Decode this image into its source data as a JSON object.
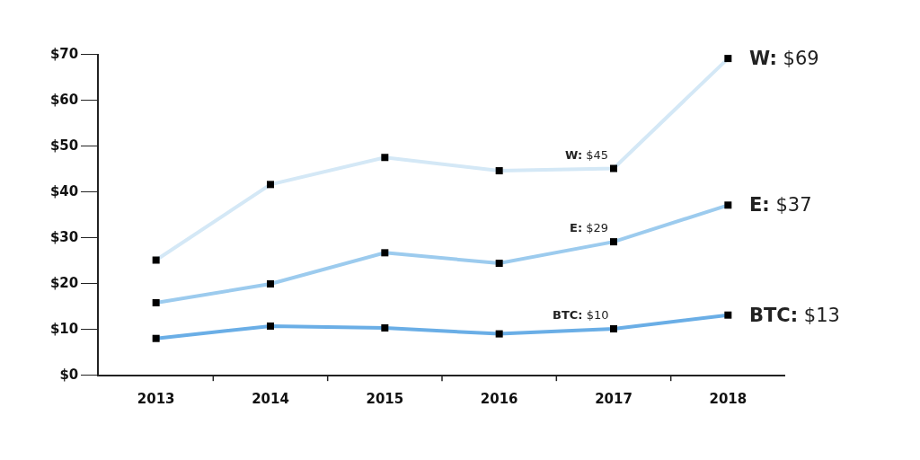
{
  "chart_data": {
    "type": "line",
    "categories": [
      "2013",
      "2014",
      "2015",
      "2016",
      "2017",
      "2018"
    ],
    "series": [
      {
        "color": "#d4e8f6",
        "values": [
          25,
          41.5,
          47.4,
          44.5,
          45,
          69
        ]
      },
      {
        "color": "#9ccbee",
        "values": [
          15.7,
          19.8,
          26.6,
          24.3,
          29,
          37
        ]
      },
      {
        "color": "#6aaee6",
        "values": [
          7.9,
          10.6,
          10.2,
          8.9,
          10,
          13
        ]
      }
    ],
    "ylim": [
      0,
      70
    ],
    "yticks": [
      {
        "value": 0,
        "label": "$0"
      },
      {
        "value": 10,
        "label": "$10"
      },
      {
        "value": 20,
        "label": "$20"
      },
      {
        "value": 30,
        "label": "$30"
      },
      {
        "value": 40,
        "label": "$40"
      },
      {
        "value": 50,
        "label": "$50"
      },
      {
        "value": 60,
        "label": "$60"
      },
      {
        "value": 70,
        "label": "$70"
      }
    ],
    "annotations": [
      {
        "text": "W: $45",
        "x": "2017",
        "y": 45
      },
      {
        "text": "E: $29",
        "x": "2017",
        "y": 29
      },
      {
        "text": "BTC: $10",
        "x": "2017",
        "y": 10
      },
      {
        "text": "W: $69",
        "x": "2018",
        "y": 69
      },
      {
        "text": "E: $37",
        "x": "2018",
        "y": 37
      },
      {
        "text": "BTC: $13",
        "x": "2018",
        "y": 13
      }
    ],
    "marker": "square",
    "line_style": "solid",
    "legend": false
  }
}
